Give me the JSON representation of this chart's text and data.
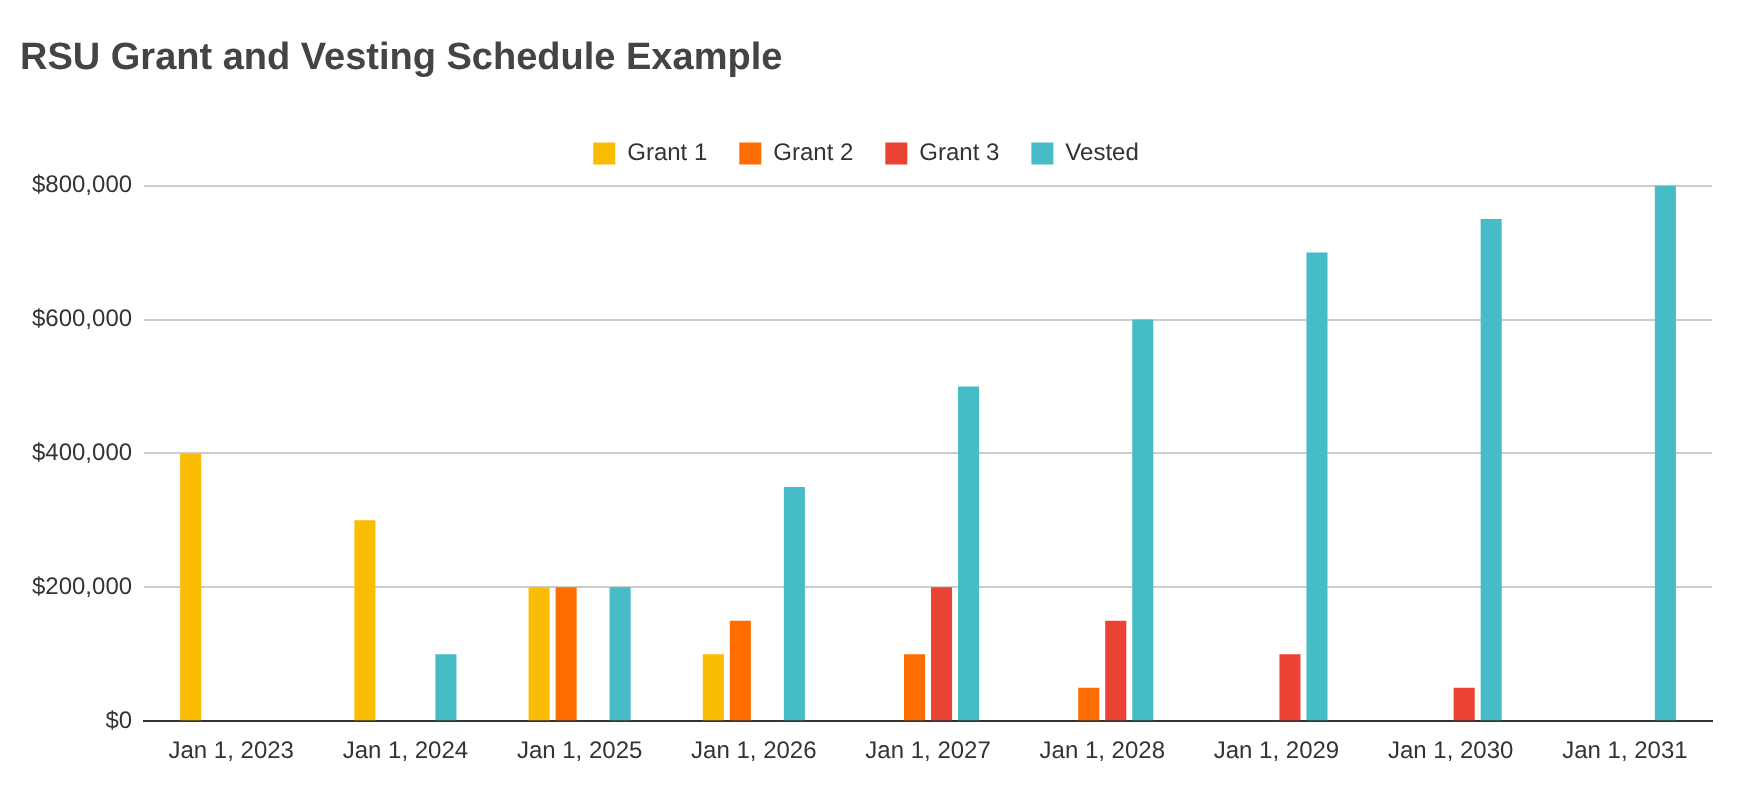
{
  "chart_data": {
    "type": "bar",
    "title": "RSU Grant and Vesting Schedule Example",
    "categories": [
      "Jan 1, 2023",
      "Jan 1, 2024",
      "Jan 1, 2025",
      "Jan 1, 2026",
      "Jan 1, 2027",
      "Jan 1, 2028",
      "Jan 1, 2029",
      "Jan 1, 2030",
      "Jan 1, 2031"
    ],
    "series": [
      {
        "name": "Grant 1",
        "color": "#fbbc04",
        "values": [
          400000,
          300000,
          200000,
          100000,
          null,
          null,
          null,
          null,
          null
        ]
      },
      {
        "name": "Grant 2",
        "color": "#ff6d01",
        "values": [
          null,
          null,
          200000,
          150000,
          100000,
          50000,
          null,
          null,
          null
        ]
      },
      {
        "name": "Grant 3",
        "color": "#ea4335",
        "values": [
          null,
          null,
          null,
          null,
          200000,
          150000,
          100000,
          50000,
          null
        ]
      },
      {
        "name": "Vested",
        "color": "#46bdc6",
        "values": [
          null,
          100000,
          200000,
          350000,
          500000,
          600000,
          700000,
          750000,
          800000
        ]
      }
    ],
    "ylim": [
      0,
      800000
    ],
    "yticks": [
      {
        "value": 0,
        "label": "$0"
      },
      {
        "value": 200000,
        "label": "$200,000"
      },
      {
        "value": 400000,
        "label": "$400,000"
      },
      {
        "value": 600000,
        "label": "$600,000"
      },
      {
        "value": 800000,
        "label": "$800,000"
      }
    ],
    "grid": "y",
    "legend": "top"
  }
}
